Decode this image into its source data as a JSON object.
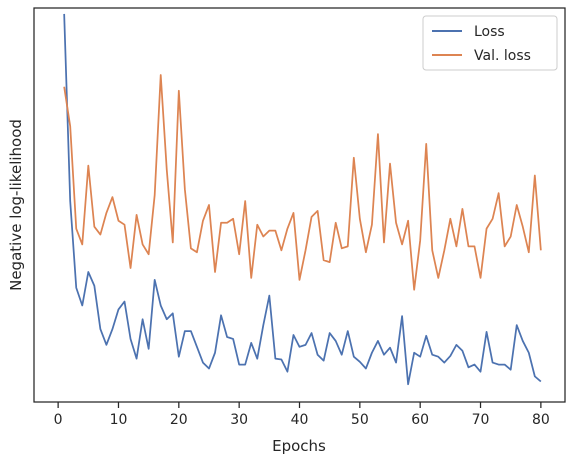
{
  "chart_data": {
    "type": "line",
    "title": "",
    "xlabel": "Epochs",
    "ylabel": "Negative log-likelihood",
    "xlim": [
      -4,
      84
    ],
    "ylim": [
      0,
      100
    ],
    "xticks": [
      0,
      10,
      20,
      30,
      40,
      50,
      60,
      70,
      80
    ],
    "yticks_shown": false,
    "grid": false,
    "legend_position": "top-right",
    "x": [
      1,
      2,
      3,
      4,
      5,
      6,
      7,
      8,
      9,
      10,
      11,
      12,
      13,
      14,
      15,
      16,
      17,
      18,
      19,
      20,
      21,
      22,
      23,
      24,
      25,
      26,
      27,
      28,
      29,
      30,
      31,
      32,
      33,
      34,
      35,
      36,
      37,
      38,
      39,
      40,
      41,
      42,
      43,
      44,
      45,
      46,
      47,
      48,
      49,
      50,
      51,
      52,
      53,
      54,
      55,
      56,
      57,
      58,
      59,
      60,
      61,
      62,
      63,
      64,
      65,
      66,
      67,
      68,
      69,
      70,
      71,
      72,
      73,
      74,
      75,
      76,
      77,
      78,
      79,
      80
    ],
    "series": [
      {
        "name": "Loss",
        "color": "#4c72b0",
        "values": [
          98.5,
          51,
          29,
          24.5,
          33,
          29.5,
          18.5,
          14.5,
          18.5,
          23.5,
          25.5,
          16,
          11,
          21,
          13.5,
          31,
          24.5,
          21,
          22.5,
          11.5,
          18,
          18,
          14,
          10,
          8.5,
          12.5,
          22,
          16.5,
          16,
          9.5,
          9.5,
          15,
          11,
          19.5,
          27,
          11,
          10.8,
          7.7,
          17,
          14,
          14.5,
          17.5,
          12,
          10.5,
          17.5,
          15.5,
          12,
          18,
          11.5,
          10.2,
          8.5,
          12.5,
          15.5,
          12,
          13.8,
          10,
          21.8,
          4.5,
          12.5,
          11.5,
          16.8,
          12,
          11.5,
          10,
          11.7,
          14.5,
          13,
          8.8,
          9.5,
          7.7,
          17.8,
          10,
          9.5,
          9.5,
          8.2,
          19.5,
          15.5,
          12.5,
          6.5,
          5.2
        ]
      },
      {
        "name": "Val. loss",
        "color": "#dd8452",
        "values": [
          80,
          70,
          44,
          40,
          60,
          44.5,
          42.5,
          48,
          52,
          46,
          45,
          34,
          47.5,
          40,
          37.5,
          52.5,
          83,
          59,
          40.5,
          79,
          54,
          39,
          38,
          46,
          50,
          33,
          45.5,
          45.5,
          46.5,
          37.5,
          51,
          31.5,
          45,
          42,
          43.5,
          43.5,
          38.5,
          44,
          48,
          31,
          38.5,
          47,
          48.5,
          36,
          35.5,
          45.5,
          39,
          39.5,
          62,
          46.5,
          38,
          45,
          68,
          40.5,
          60.5,
          45.5,
          40,
          46,
          28.5,
          41,
          65.5,
          38.5,
          31.5,
          38.5,
          46.5,
          39.5,
          49,
          39.5,
          39.5,
          31.5,
          44,
          46.5,
          53,
          39.5,
          42,
          50,
          44.5,
          38,
          57.5,
          38.5
        ]
      }
    ]
  }
}
